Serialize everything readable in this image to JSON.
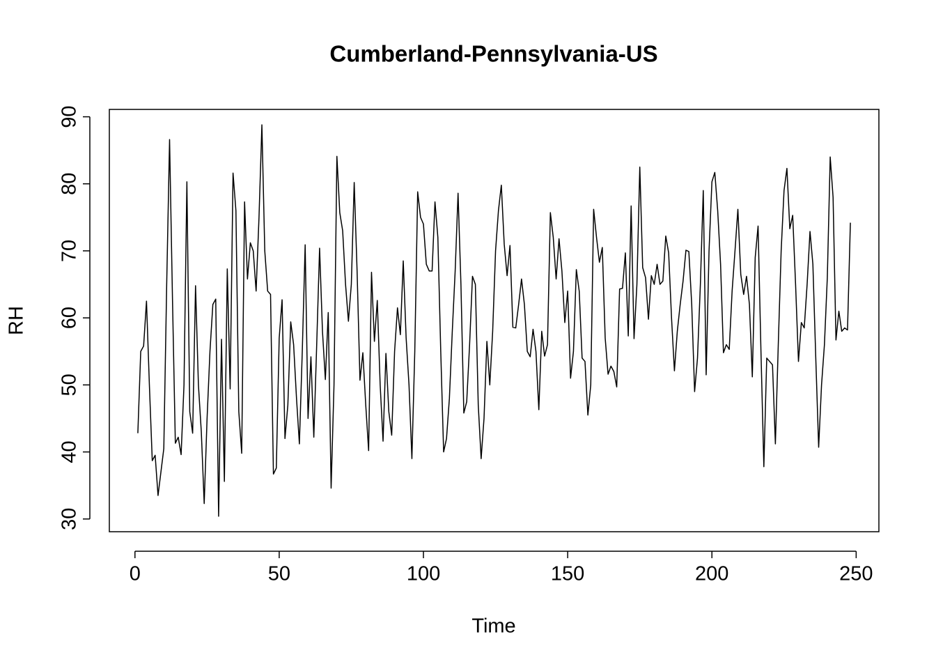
{
  "chart_data": {
    "type": "line",
    "title": "Cumberland-Pennsylvania-US",
    "x_label": "Time",
    "y_label": "RH",
    "color": "#000000",
    "x": [
      1,
      2,
      3,
      4,
      5,
      6,
      7,
      8,
      9,
      10,
      11,
      12,
      13,
      14,
      15,
      16,
      17,
      18,
      19,
      20,
      21,
      22,
      23,
      24,
      25,
      26,
      27,
      28,
      29,
      30,
      31,
      32,
      33,
      34,
      35,
      36,
      37,
      38,
      39,
      40,
      41,
      42,
      43,
      44,
      45,
      46,
      47,
      48,
      49,
      50,
      51,
      52,
      53,
      54,
      55,
      56,
      57,
      58,
      59,
      60,
      61,
      62,
      63,
      64,
      65,
      66,
      67,
      68,
      69,
      70,
      71,
      72,
      73,
      74,
      75,
      76,
      77,
      78,
      79,
      80,
      81,
      82,
      83,
      84,
      85,
      86,
      87,
      88,
      89,
      90,
      91,
      92,
      93,
      94,
      95,
      96,
      97,
      98,
      99,
      100,
      101,
      102,
      103,
      104,
      105,
      106,
      107,
      108,
      109,
      110,
      111,
      112,
      113,
      114,
      115,
      116,
      117,
      118,
      119,
      120,
      121,
      122,
      123,
      124,
      125,
      126,
      127,
      128,
      129,
      130,
      131,
      132,
      133,
      134,
      135,
      136,
      137,
      138,
      139,
      140,
      141,
      142,
      143,
      144,
      145,
      146,
      147,
      148,
      149,
      150,
      151,
      152,
      153,
      154,
      155,
      156,
      157,
      158,
      159,
      160,
      161,
      162,
      163,
      164,
      165,
      166,
      167,
      168,
      169,
      170,
      171,
      172,
      173,
      174,
      175,
      176,
      177,
      178,
      179,
      180,
      181,
      182,
      183,
      184,
      185,
      186,
      187,
      188,
      189,
      190,
      191,
      192,
      193,
      194,
      195,
      196,
      197,
      198,
      199,
      200,
      201,
      202,
      203,
      204,
      205,
      206,
      207,
      208,
      209,
      210,
      211,
      212,
      213,
      214,
      215,
      216,
      217,
      218,
      219,
      220,
      221,
      222,
      223,
      224,
      225,
      226,
      227,
      228,
      229,
      230,
      231,
      232,
      233,
      234,
      235,
      236,
      237,
      238,
      239,
      240,
      241,
      242,
      243,
      244,
      245,
      246,
      247,
      248
    ],
    "values": [
      42.8,
      55,
      55.8,
      62.5,
      50,
      38.7,
      39.5,
      33.5,
      37,
      40.5,
      65,
      86.6,
      63,
      41.3,
      42.2,
      39.6,
      50,
      80.3,
      46,
      42.8,
      64.8,
      50,
      43,
      32.3,
      45,
      55,
      62,
      62.8,
      30.4,
      56.8,
      35.6,
      67.3,
      49.4,
      81.6,
      76,
      46,
      39.8,
      77.3,
      65.8,
      71.2,
      70,
      64,
      75,
      88.8,
      70,
      64,
      63.5,
      36.7,
      37.6,
      57,
      62.7,
      42,
      47,
      59.4,
      56,
      48,
      41.2,
      55,
      70.9,
      45,
      54.2,
      42.2,
      56,
      70.4,
      58,
      50.8,
      60.8,
      34.6,
      50,
      84.1,
      75.7,
      73,
      65,
      59.5,
      65,
      80.2,
      67,
      50.7,
      54.8,
      47,
      40.2,
      66.8,
      56.5,
      62.6,
      50,
      41.6,
      54.7,
      46,
      42.5,
      55,
      61.5,
      57.5,
      68.5,
      57,
      50,
      39,
      55,
      78.8,
      75,
      74,
      68,
      67,
      67,
      77.3,
      72,
      55,
      40,
      42,
      48,
      58,
      67,
      78.6,
      65,
      45.8,
      47.5,
      56,
      66.2,
      65,
      47,
      39,
      45,
      56.5,
      50,
      58,
      70,
      76,
      79.8,
      71,
      66.3,
      70.8,
      58.6,
      58.5,
      62,
      65.8,
      62,
      55,
      54.2,
      58.3,
      55,
      46.3,
      58,
      54.3,
      56,
      75.7,
      72,
      65.8,
      71.8,
      67,
      59.3,
      64,
      51,
      55,
      67.2,
      64,
      54,
      53.5,
      45.5,
      50,
      76.2,
      72,
      68.3,
      70.5,
      57,
      51.6,
      52.8,
      52,
      49.7,
      64.3,
      64.4,
      69.7,
      57.3,
      76.7,
      56.9,
      65,
      82.5,
      67.5,
      66,
      59.8,
      66.3,
      65,
      68,
      65,
      65.5,
      72.2,
      69.7,
      60,
      52.1,
      58,
      62,
      65.5,
      70.1,
      69.9,
      62,
      49,
      54,
      65,
      79,
      51.5,
      70,
      80.3,
      81.7,
      76,
      68,
      54.8,
      56,
      55.3,
      64,
      70,
      76.2,
      66.5,
      63.5,
      66.2,
      62,
      51.2,
      69,
      73.7,
      55,
      37.8,
      54,
      53.5,
      53,
      41.2,
      56,
      70,
      79,
      82.3,
      73.3,
      75.3,
      65,
      53.5,
      59.3,
      58.5,
      65,
      72.9,
      68,
      54,
      40.7,
      50,
      56,
      66,
      84,
      78,
      56.7,
      61,
      58,
      58.5,
      58.2,
      74.2
    ],
    "xlim": [
      -8.88,
      257.88
    ],
    "ylim": [
      28.1,
      91.1
    ],
    "xticks": [
      0,
      50,
      100,
      150,
      200,
      250
    ],
    "yticks": [
      30,
      40,
      50,
      60,
      70,
      80,
      90
    ]
  }
}
